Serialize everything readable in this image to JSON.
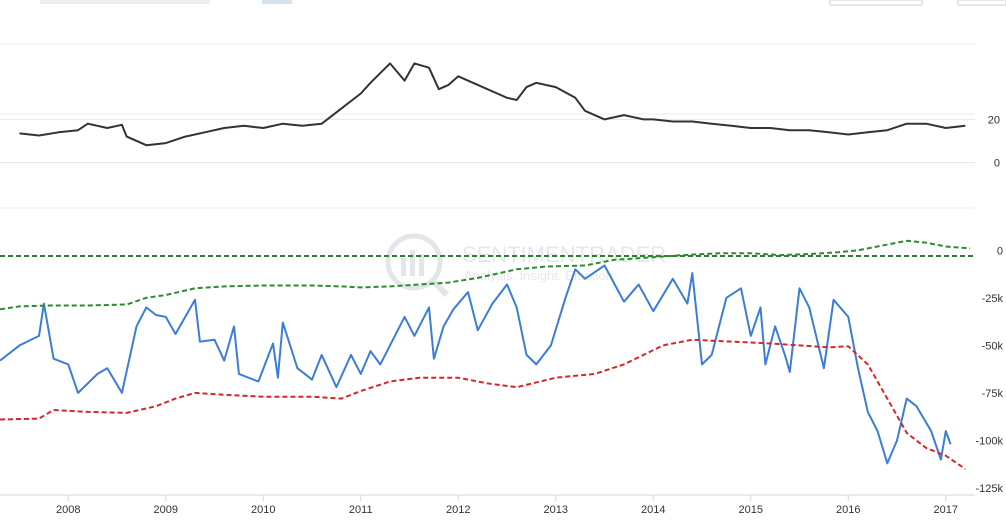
{
  "chart_data": [
    {
      "type": "line",
      "panel": "upper",
      "grid": true,
      "legend": "none",
      "y_ticks": [
        {
          "value": 20,
          "label": "20"
        },
        {
          "value": 0,
          "label": "0"
        }
      ],
      "ylim": [
        -10,
        55
      ],
      "series": [
        {
          "color": "#333333",
          "points": [
            [
              2007.5,
              13.5
            ],
            [
              2007.7,
              12.5
            ],
            [
              2007.9,
              14
            ],
            [
              2008.1,
              15
            ],
            [
              2008.2,
              18
            ],
            [
              2008.4,
              16
            ],
            [
              2008.55,
              17.5
            ],
            [
              2008.6,
              12
            ],
            [
              2008.8,
              8
            ],
            [
              2009.0,
              9
            ],
            [
              2009.2,
              12
            ],
            [
              2009.4,
              14
            ],
            [
              2009.6,
              16
            ],
            [
              2009.8,
              17
            ],
            [
              2010.0,
              16
            ],
            [
              2010.2,
              18
            ],
            [
              2010.4,
              17
            ],
            [
              2010.6,
              18
            ],
            [
              2010.8,
              25
            ],
            [
              2011.0,
              32
            ],
            [
              2011.1,
              37
            ],
            [
              2011.3,
              46
            ],
            [
              2011.45,
              38
            ],
            [
              2011.55,
              46
            ],
            [
              2011.7,
              44
            ],
            [
              2011.8,
              34
            ],
            [
              2011.9,
              36
            ],
            [
              2012.0,
              40
            ],
            [
              2012.2,
              36
            ],
            [
              2012.4,
              32
            ],
            [
              2012.5,
              30
            ],
            [
              2012.6,
              29
            ],
            [
              2012.7,
              35
            ],
            [
              2012.8,
              37
            ],
            [
              2013.0,
              35
            ],
            [
              2013.2,
              30
            ],
            [
              2013.3,
              24
            ],
            [
              2013.5,
              20
            ],
            [
              2013.7,
              22
            ],
            [
              2013.9,
              20
            ],
            [
              2014.0,
              20
            ],
            [
              2014.2,
              19
            ],
            [
              2014.4,
              19
            ],
            [
              2014.6,
              18
            ],
            [
              2014.8,
              17
            ],
            [
              2015.0,
              16
            ],
            [
              2015.2,
              16
            ],
            [
              2015.4,
              15
            ],
            [
              2015.6,
              15
            ],
            [
              2015.8,
              14
            ],
            [
              2016.0,
              13
            ],
            [
              2016.2,
              14
            ],
            [
              2016.4,
              15
            ],
            [
              2016.6,
              18
            ],
            [
              2016.8,
              18
            ],
            [
              2017.0,
              16
            ],
            [
              2017.2,
              17
            ]
          ]
        }
      ]
    },
    {
      "type": "line",
      "panel": "lower",
      "grid": false,
      "legend": "none",
      "y_ticks": [
        {
          "value": 0,
          "label": "0"
        },
        {
          "value": -25000,
          "label": "-25k"
        },
        {
          "value": -50000,
          "label": "-50k"
        },
        {
          "value": -75000,
          "label": "-75k"
        },
        {
          "value": -100000,
          "label": "-100k"
        },
        {
          "value": -125000,
          "label": "-125k"
        }
      ],
      "ylim": [
        -125000,
        7000
      ],
      "x_ticks": [
        "2008",
        "2009",
        "2010",
        "2011",
        "2012",
        "2013",
        "2014",
        "2015",
        "2016",
        "2017"
      ],
      "xlim": [
        2007.3,
        2017.3
      ],
      "reference_lines": [
        {
          "y": -3000,
          "color": "#2e7d32",
          "style": "dashed"
        }
      ],
      "series": [
        {
          "color": "#3b7dd8",
          "style": "solid",
          "points": [
            [
              2007.3,
              -58000
            ],
            [
              2007.5,
              -50000
            ],
            [
              2007.7,
              -45000
            ],
            [
              2007.75,
              -28000
            ],
            [
              2007.85,
              -57000
            ],
            [
              2008.0,
              -60000
            ],
            [
              2008.1,
              -75000
            ],
            [
              2008.3,
              -65000
            ],
            [
              2008.4,
              -62000
            ],
            [
              2008.55,
              -75000
            ],
            [
              2008.7,
              -40000
            ],
            [
              2008.8,
              -30000
            ],
            [
              2008.9,
              -34000
            ],
            [
              2009.0,
              -35000
            ],
            [
              2009.1,
              -44000
            ],
            [
              2009.3,
              -26000
            ],
            [
              2009.35,
              -48000
            ],
            [
              2009.5,
              -47000
            ],
            [
              2009.6,
              -58000
            ],
            [
              2009.7,
              -40000
            ],
            [
              2009.75,
              -65000
            ],
            [
              2009.95,
              -69000
            ],
            [
              2010.1,
              -49000
            ],
            [
              2010.15,
              -67000
            ],
            [
              2010.2,
              -38000
            ],
            [
              2010.35,
              -62000
            ],
            [
              2010.5,
              -68000
            ],
            [
              2010.6,
              -55000
            ],
            [
              2010.75,
              -72000
            ],
            [
              2010.9,
              -55000
            ],
            [
              2011.0,
              -65000
            ],
            [
              2011.1,
              -53000
            ],
            [
              2011.2,
              -60000
            ],
            [
              2011.3,
              -50000
            ],
            [
              2011.45,
              -35000
            ],
            [
              2011.55,
              -45000
            ],
            [
              2011.7,
              -30000
            ],
            [
              2011.75,
              -57000
            ],
            [
              2011.85,
              -40000
            ],
            [
              2011.95,
              -31000
            ],
            [
              2012.1,
              -22000
            ],
            [
              2012.2,
              -42000
            ],
            [
              2012.35,
              -28000
            ],
            [
              2012.5,
              -18000
            ],
            [
              2012.6,
              -30000
            ],
            [
              2012.7,
              -55000
            ],
            [
              2012.8,
              -60000
            ],
            [
              2012.95,
              -50000
            ],
            [
              2013.1,
              -25000
            ],
            [
              2013.2,
              -10000
            ],
            [
              2013.3,
              -15000
            ],
            [
              2013.5,
              -8000
            ],
            [
              2013.7,
              -27000
            ],
            [
              2013.85,
              -18000
            ],
            [
              2014.0,
              -32000
            ],
            [
              2014.2,
              -15000
            ],
            [
              2014.35,
              -28000
            ],
            [
              2014.4,
              -12000
            ],
            [
              2014.5,
              -60000
            ],
            [
              2014.6,
              -55000
            ],
            [
              2014.75,
              -25000
            ],
            [
              2014.9,
              -20000
            ],
            [
              2015.0,
              -45000
            ],
            [
              2015.1,
              -30000
            ],
            [
              2015.15,
              -60000
            ],
            [
              2015.25,
              -40000
            ],
            [
              2015.35,
              -55000
            ],
            [
              2015.4,
              -64000
            ],
            [
              2015.5,
              -20000
            ],
            [
              2015.6,
              -30000
            ],
            [
              2015.75,
              -62000
            ],
            [
              2015.85,
              -26000
            ],
            [
              2016.0,
              -35000
            ],
            [
              2016.1,
              -62000
            ],
            [
              2016.2,
              -85000
            ],
            [
              2016.3,
              -95000
            ],
            [
              2016.4,
              -112000
            ],
            [
              2016.5,
              -100000
            ],
            [
              2016.6,
              -78000
            ],
            [
              2016.7,
              -82000
            ],
            [
              2016.85,
              -95000
            ],
            [
              2016.95,
              -110000
            ],
            [
              2017.0,
              -95000
            ],
            [
              2017.05,
              -102000
            ]
          ]
        },
        {
          "color": "#2e8b2e",
          "style": "dashed",
          "points": [
            [
              2007.3,
              -31000
            ],
            [
              2007.5,
              -29500
            ],
            [
              2007.8,
              -29000
            ],
            [
              2008.2,
              -29000
            ],
            [
              2008.6,
              -28500
            ],
            [
              2008.8,
              -25000
            ],
            [
              2009.0,
              -23500
            ],
            [
              2009.3,
              -20000
            ],
            [
              2009.6,
              -19000
            ],
            [
              2010.0,
              -18500
            ],
            [
              2010.5,
              -18500
            ],
            [
              2010.8,
              -19000
            ],
            [
              2011.0,
              -19500
            ],
            [
              2011.3,
              -19000
            ],
            [
              2011.6,
              -18000
            ],
            [
              2011.9,
              -17000
            ],
            [
              2012.2,
              -14500
            ],
            [
              2012.6,
              -10000
            ],
            [
              2012.9,
              -8500
            ],
            [
              2013.3,
              -8000
            ],
            [
              2013.6,
              -5000
            ],
            [
              2013.9,
              -4000
            ],
            [
              2014.3,
              -2500
            ],
            [
              2014.7,
              -1500
            ],
            [
              2015.0,
              -1500
            ],
            [
              2015.3,
              -2500
            ],
            [
              2015.6,
              -2000
            ],
            [
              2015.9,
              -1000
            ],
            [
              2016.1,
              0
            ],
            [
              2016.3,
              2000
            ],
            [
              2016.6,
              5000
            ],
            [
              2016.8,
              4000
            ],
            [
              2017.0,
              2000
            ],
            [
              2017.25,
              1000
            ]
          ]
        },
        {
          "color": "#d62728",
          "style": "dashed",
          "points": [
            [
              2007.3,
              -89000
            ],
            [
              2007.7,
              -88500
            ],
            [
              2007.85,
              -84000
            ],
            [
              2008.2,
              -85000
            ],
            [
              2008.6,
              -85500
            ],
            [
              2008.9,
              -82000
            ],
            [
              2009.1,
              -78000
            ],
            [
              2009.3,
              -75000
            ],
            [
              2009.6,
              -76000
            ],
            [
              2010.0,
              -77000
            ],
            [
              2010.5,
              -77000
            ],
            [
              2010.8,
              -78000
            ],
            [
              2011.0,
              -74000
            ],
            [
              2011.3,
              -69000
            ],
            [
              2011.6,
              -67000
            ],
            [
              2012.0,
              -67000
            ],
            [
              2012.3,
              -70000
            ],
            [
              2012.6,
              -72000
            ],
            [
              2013.0,
              -67000
            ],
            [
              2013.4,
              -65000
            ],
            [
              2013.7,
              -60000
            ],
            [
              2013.9,
              -55000
            ],
            [
              2014.1,
              -50000
            ],
            [
              2014.4,
              -47000
            ],
            [
              2014.8,
              -48000
            ],
            [
              2015.2,
              -49000
            ],
            [
              2015.5,
              -50000
            ],
            [
              2015.8,
              -51000
            ],
            [
              2016.0,
              -50500
            ],
            [
              2016.2,
              -60000
            ],
            [
              2016.4,
              -78000
            ],
            [
              2016.6,
              -96000
            ],
            [
              2016.8,
              -104000
            ],
            [
              2017.0,
              -108000
            ],
            [
              2017.2,
              -115000
            ]
          ]
        }
      ]
    }
  ],
  "watermark": {
    "title": "SENTIMENTRADER",
    "subtitle": "Analysis. Insight. Emotion"
  }
}
